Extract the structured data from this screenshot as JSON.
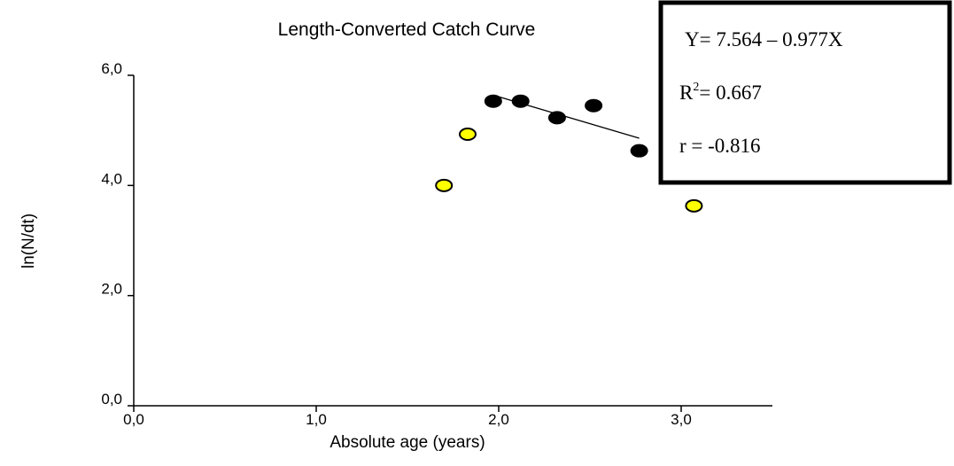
{
  "chart_data": {
    "type": "scatter",
    "title": "Length-Converted Catch Curve",
    "xlabel": "Absolute age (years)",
    "ylabel": "ln(N/dt)",
    "xlim": [
      0,
      3.5
    ],
    "ylim": [
      0,
      6
    ],
    "x_ticks": [
      "0,0",
      "1,0",
      "2,0",
      "3,0"
    ],
    "y_ticks": [
      "0,0",
      "2,0",
      "4,0",
      "6,0"
    ],
    "series": [
      {
        "role": "used in regression",
        "color": "#000000",
        "points": [
          {
            "x": 1.97,
            "y": 5.53
          },
          {
            "x": 2.12,
            "y": 5.53
          },
          {
            "x": 2.32,
            "y": 5.23
          },
          {
            "x": 2.52,
            "y": 5.45
          },
          {
            "x": 2.77,
            "y": 4.63
          }
        ]
      },
      {
        "role": "not used",
        "color": "#ffff00",
        "points": [
          {
            "x": 1.7,
            "y": 4.0
          },
          {
            "x": 1.83,
            "y": 4.93
          },
          {
            "x": 3.07,
            "y": 3.63
          }
        ]
      }
    ],
    "regression_line": {
      "x_start": 1.97,
      "x_end": 2.77,
      "intercept": 7.564,
      "slope": -0.977
    },
    "annotation_box": {
      "equation": "Y= 7.564 – 0.977X",
      "r2_label": "R",
      "r2_sup": "2",
      "r2_value": "= 0.667",
      "r_text": "r = -0.816"
    }
  }
}
